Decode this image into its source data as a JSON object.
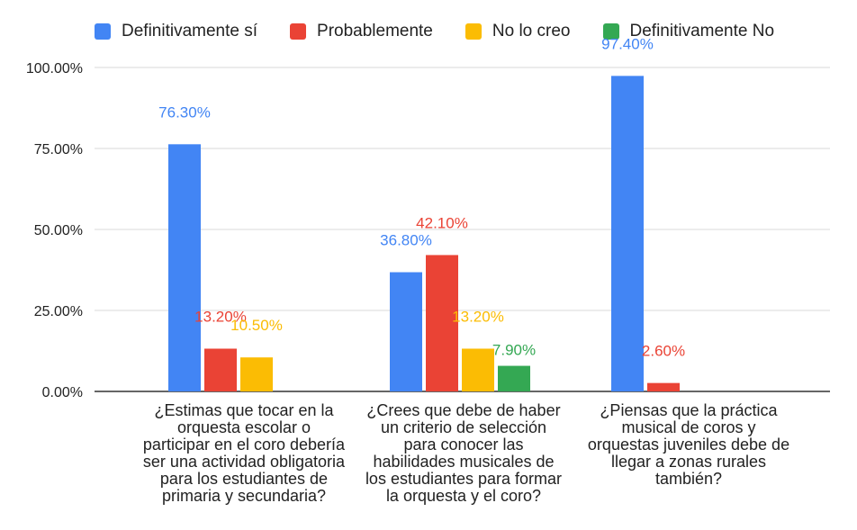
{
  "chart_data": {
    "type": "bar",
    "categories": [
      "¿Estimas  que tocar en la\norquesta escolar o\nparticipar en el coro debería\nser una actividad obligatoria\npara los estudiantes de\nprimaria y secundaria?",
      "¿Crees que debe de haber\nun criterio de selección\npara conocer las\nhabilidades musicales de\nlos estudiantes para formar\nla orquesta y el coro?",
      "¿Piensas que la práctica\nmusical de coros y\norquestas juveniles debe de\nllegar a zonas rurales\ntambién?"
    ],
    "series": [
      {
        "name": "Definitivamente sí",
        "color": "#4285f4",
        "values": [
          76.3,
          36.8,
          97.4
        ],
        "labels": [
          "76.30%",
          "36.80%",
          "97.40%"
        ]
      },
      {
        "name": "Probablemente",
        "color": "#ea4335",
        "values": [
          13.2,
          42.1,
          2.6
        ],
        "labels": [
          "13.20%",
          "42.10%",
          "2.60%"
        ]
      },
      {
        "name": "No lo creo",
        "color": "#fbbc04",
        "values": [
          10.5,
          13.2,
          0
        ],
        "labels": [
          "10.50%",
          "13.20%",
          ""
        ]
      },
      {
        "name": "Definitivamente No",
        "color": "#34a853",
        "values": [
          0,
          7.9,
          0
        ],
        "labels": [
          "",
          "7.90%",
          ""
        ]
      }
    ],
    "yticks": [
      "0.00%",
      "25.00%",
      "50.00%",
      "75.00%",
      "100.00%"
    ],
    "ytick_values": [
      0,
      25,
      50,
      75,
      100
    ],
    "ylim": [
      0,
      100
    ],
    "grid": true,
    "legend": "top"
  }
}
